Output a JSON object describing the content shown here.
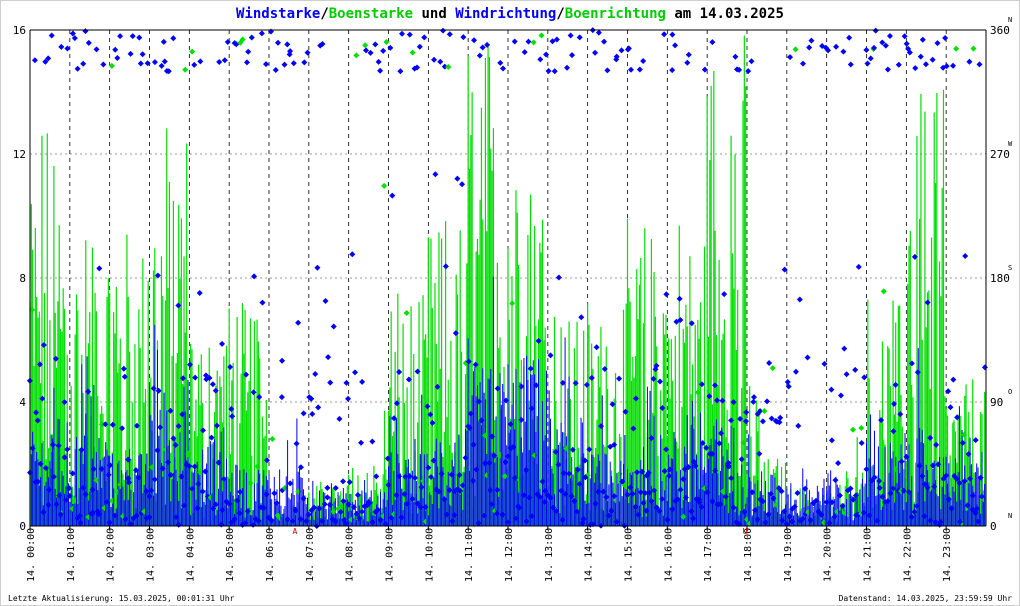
{
  "chart_data": {
    "type": "scatter",
    "title_parts": [
      {
        "text": "Windstarke",
        "color": "#0000ff"
      },
      {
        "text": "/",
        "color": "#000000"
      },
      {
        "text": "Boenstarke",
        "color": "#00cc00"
      },
      {
        "text": " und ",
        "color": "#000000"
      },
      {
        "text": "Windrichtung",
        "color": "#0000ff"
      },
      {
        "text": "/",
        "color": "#000000"
      },
      {
        "text": "Boenrichtung",
        "color": "#00cc00"
      },
      {
        "text": " am 14.03.2025",
        "color": "#000000"
      }
    ],
    "ylim_left": [
      0,
      16
    ],
    "left_ticks": [
      "0",
      "4",
      "8",
      "12",
      "16"
    ],
    "ylim_right": [
      0,
      360
    ],
    "right_ticks": [
      {
        "value": "0",
        "dir": "N"
      },
      {
        "value": "90",
        "dir": "O"
      },
      {
        "value": "180",
        "dir": "S"
      },
      {
        "value": "270",
        "dir": "W"
      },
      {
        "value": "360",
        "dir": "N"
      }
    ],
    "x_ticks": [
      "14. 00:00",
      "14. 01:00",
      "14. 02:00",
      "14. 03:00",
      "14. 04:00",
      "14. 05:00",
      "14. 06:00",
      "14. 07:00",
      "14. 08:00",
      "14. 09:00",
      "14. 10:00",
      "14. 11:00",
      "14. 12:00",
      "14. 13:00",
      "14. 14:00",
      "14. 15:00",
      "14. 16:00",
      "14. 17:00",
      "14. 18:00",
      "14. 19:00",
      "14. 20:00",
      "14. 21:00",
      "14. 22:00",
      "14. 23:00"
    ],
    "x_range_hours": [
      0,
      24
    ],
    "markers": [
      {
        "label": "A",
        "hour": 6.65,
        "color": "#cc0000"
      },
      {
        "label": "U",
        "hour": 17.95,
        "color": "#cc0000"
      }
    ],
    "grid": true,
    "colors": {
      "wind": "#0000ff",
      "gust": "#00e000",
      "grid": "#888888"
    },
    "hourly_mean_speed": [
      1.8,
      1.6,
      1.2,
      2.4,
      1.5,
      1.0,
      1.0,
      0.7,
      0.6,
      1.2,
      1.6,
      2.6,
      2.8,
      1.8,
      1.2,
      1.3,
      1.6,
      1.7,
      0.9,
      0.8,
      0.9,
      1.4,
      1.6,
      1.2
    ],
    "hourly_gust_max": [
      13,
      10,
      10,
      13,
      7.5,
      7.5,
      1.8,
      3.2,
      5.0,
      7.5,
      10,
      16,
      13,
      7.5,
      7.5,
      10,
      10,
      16,
      5.0,
      2.8,
      3.0,
      7.5,
      16,
      5.0
    ]
  },
  "footer": {
    "left": "Letzte Aktualisierung: 15.03.2025, 00:01:31 Uhr",
    "right": "Datenstand: 14.03.2025, 23:59:59 Uhr"
  }
}
